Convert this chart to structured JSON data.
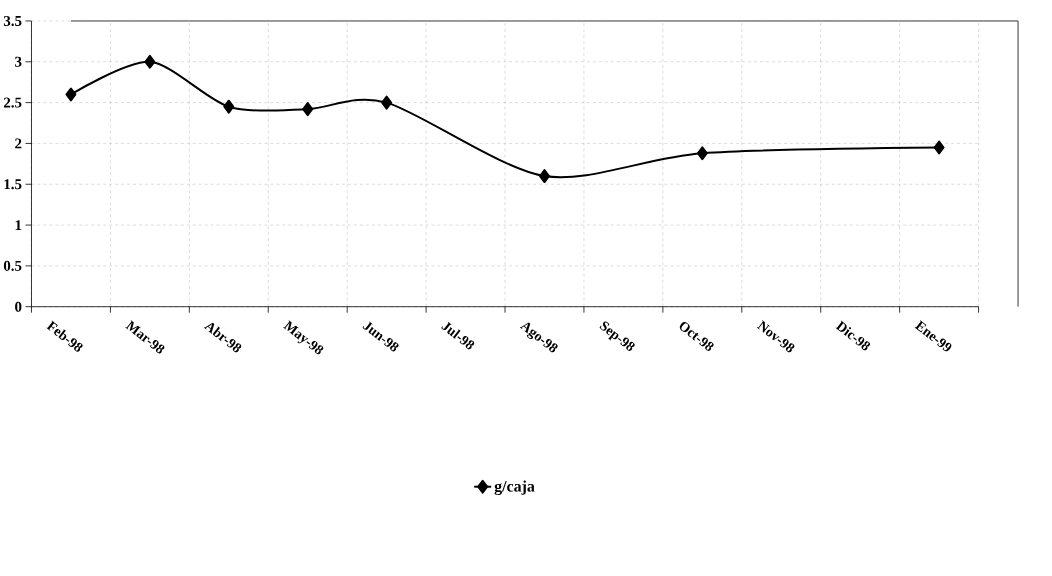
{
  "chart_data": {
    "type": "line",
    "categories": [
      "Feb-98",
      "Mar-98",
      "Abr-98",
      "May-98",
      "Jun-98",
      "Jul-98",
      "Ago-98",
      "Sep-98",
      "Oct-98",
      "Nov-98",
      "Dic-98",
      "Ene-99"
    ],
    "series": [
      {
        "name": "g/caja",
        "color": "#000000",
        "values": [
          2.6,
          3.0,
          2.45,
          2.42,
          2.5,
          null,
          1.6,
          null,
          1.88,
          null,
          null,
          1.95
        ]
      }
    ],
    "ylim": [
      0,
      3.5
    ],
    "yticks": [
      0,
      0.5,
      1,
      1.5,
      2,
      2.5,
      3,
      3.5
    ],
    "grid": true,
    "legend": "bottom",
    "marker": "diamond",
    "line_style": "solid"
  }
}
